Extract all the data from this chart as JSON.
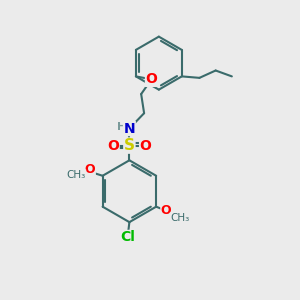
{
  "bg_color": "#ebebeb",
  "bond_color": "#3a6b6b",
  "bond_width": 1.5,
  "atom_colors": {
    "O": "#ff0000",
    "N": "#0000cc",
    "S": "#cccc00",
    "Cl": "#00bb00",
    "H": "#7a9a9a",
    "C": "#3a6b6b"
  },
  "font_size": 9
}
